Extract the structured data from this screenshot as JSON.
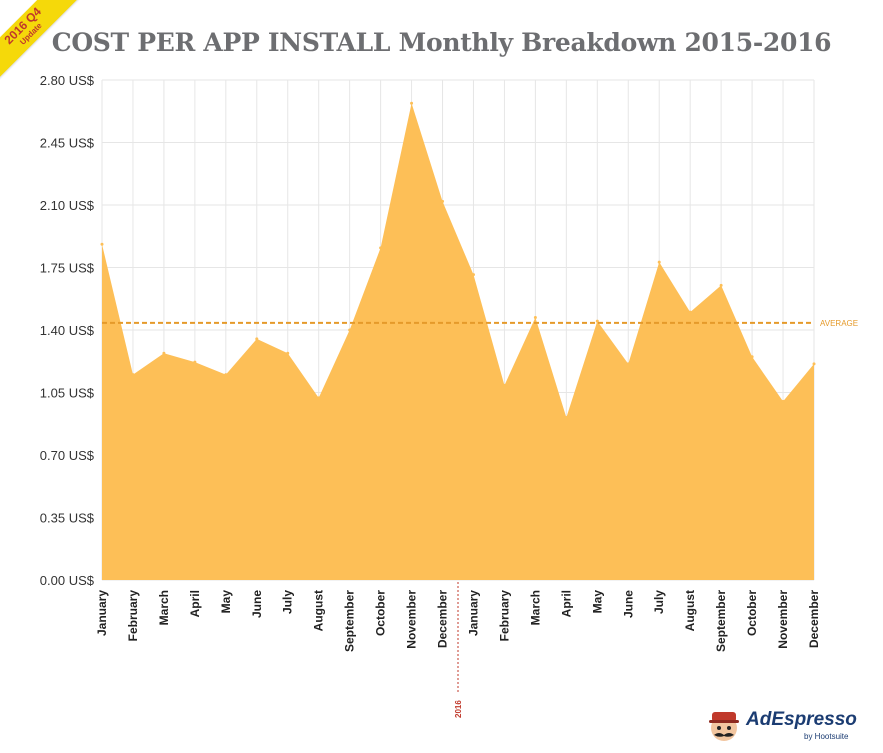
{
  "ribbon": {
    "main": "2016 Q4",
    "sub": "Update"
  },
  "brand": {
    "name": "AdEspresso",
    "byline": "by Hootsuite"
  },
  "colors": {
    "area": "#fdbf57",
    "average_line": "#e59a2a",
    "grid": "#e6e6e6",
    "year_marker": "#c0392b",
    "title": "#6d6e71"
  },
  "chart_data": {
    "type": "area",
    "title": "COST PER APP INSTALL Monthly Breakdown 2015-2016",
    "xlabel": "",
    "ylabel": "",
    "ylim": [
      0,
      2.8
    ],
    "y_ticks": [
      "0.00 US$",
      "0.35 US$",
      "0.70 US$",
      "1.05 US$",
      "1.40 US$",
      "1.75 US$",
      "2.10 US$",
      "2.45 US$",
      "2.80 US$"
    ],
    "y_tick_values": [
      0,
      0.35,
      0.7,
      1.05,
      1.4,
      1.75,
      2.1,
      2.45,
      2.8
    ],
    "categories": [
      "January",
      "February",
      "March",
      "April",
      "May",
      "June",
      "July",
      "August",
      "September",
      "October",
      "November",
      "December",
      "January",
      "February",
      "March",
      "April",
      "May",
      "June",
      "July",
      "August",
      "September",
      "October",
      "November",
      "December"
    ],
    "values": [
      1.88,
      1.15,
      1.27,
      1.22,
      1.15,
      1.35,
      1.27,
      1.02,
      1.4,
      1.86,
      2.67,
      2.12,
      1.71,
      1.09,
      1.47,
      0.91,
      1.45,
      1.21,
      1.78,
      1.5,
      1.65,
      1.25,
      1.0,
      1.21
    ],
    "average": 1.44,
    "average_label": "AVERAGE",
    "year_marker": {
      "after_index": 11,
      "label": "2016"
    },
    "grid": true,
    "legend": "none"
  }
}
